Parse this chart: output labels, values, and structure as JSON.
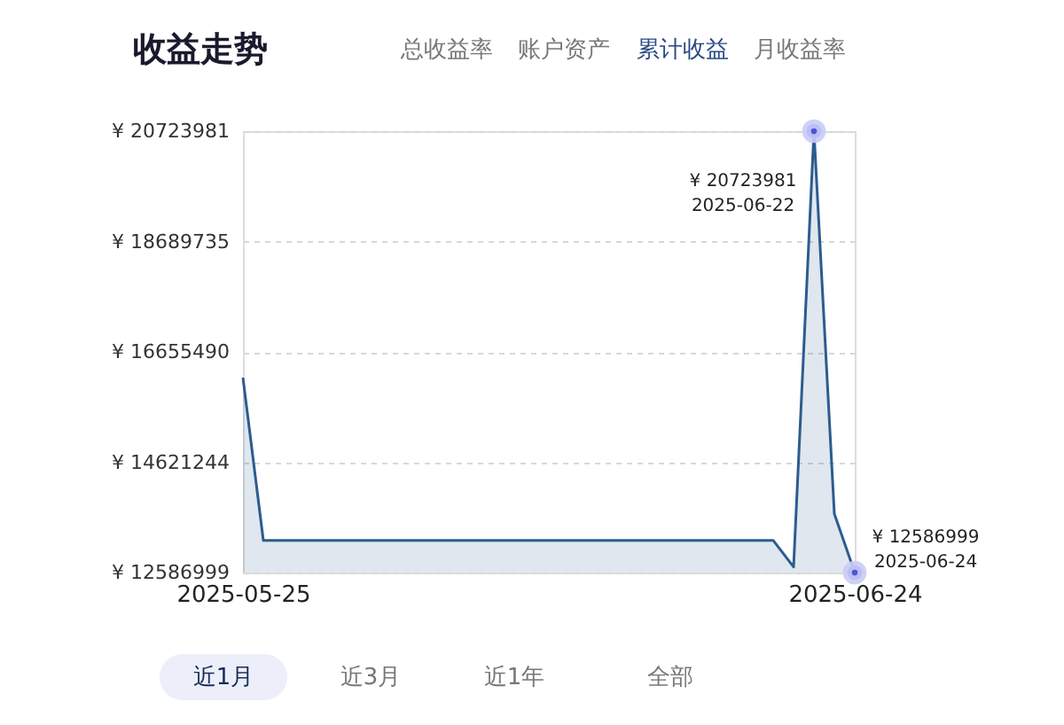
{
  "chart_data": {
    "type": "area",
    "title": "收益走势",
    "x": [
      "2025-05-25",
      "2025-05-26",
      "2025-05-27",
      "2025-05-28",
      "2025-05-29",
      "2025-05-30",
      "2025-05-31",
      "2025-06-01",
      "2025-06-02",
      "2025-06-03",
      "2025-06-04",
      "2025-06-05",
      "2025-06-06",
      "2025-06-07",
      "2025-06-08",
      "2025-06-09",
      "2025-06-10",
      "2025-06-11",
      "2025-06-12",
      "2025-06-13",
      "2025-06-14",
      "2025-06-15",
      "2025-06-16",
      "2025-06-17",
      "2025-06-18",
      "2025-06-19",
      "2025-06-20",
      "2025-06-21",
      "2025-06-22",
      "2025-06-23",
      "2025-06-24"
    ],
    "series": [
      {
        "color": "#2c5c8f",
        "values": [
          16180000,
          13180000,
          13180000,
          13180000,
          13180000,
          13180000,
          13180000,
          13180000,
          13180000,
          13180000,
          13180000,
          13180000,
          13180000,
          13180000,
          13180000,
          13180000,
          13180000,
          13180000,
          13180000,
          13180000,
          13180000,
          13180000,
          13180000,
          13180000,
          13180000,
          13180000,
          13180000,
          12690000,
          20723981,
          13670000,
          12586999
        ]
      },
      {
        "type": "scatter",
        "marker": "circle",
        "color": "#4b55d6",
        "x": [
          "2025-06-22",
          "2025-06-24"
        ],
        "values": [
          20723981,
          12586999
        ]
      }
    ],
    "xlim": [
      "2025-05-25",
      "2025-06-24"
    ],
    "xticks": [
      "2025-05-25",
      "2025-06-24"
    ],
    "ylim": [
      12586999,
      20723981
    ],
    "yticks": [
      {
        "value": 12586999,
        "label": "¥ 12586999"
      },
      {
        "value": 14621244,
        "label": "¥ 14621244"
      },
      {
        "value": 16655490,
        "label": "¥ 16655490"
      },
      {
        "value": 18689735,
        "label": "¥ 18689735"
      },
      {
        "value": 20723981,
        "label": "¥ 20723981"
      }
    ],
    "grid": "y",
    "marker": "none",
    "annotations": [
      "总收益率",
      "账户资产",
      "累计收益",
      "月收益率",
      {
        "text": "¥ 20723981\n2025-06-22",
        "x": "2025-06-22",
        "y": 20723981
      },
      {
        "text": "¥ 12586999\n2025-06-24",
        "x": "2025-06-24",
        "y": 12586999
      },
      "近1月",
      "近3月",
      "近1年",
      "全部"
    ]
  }
}
